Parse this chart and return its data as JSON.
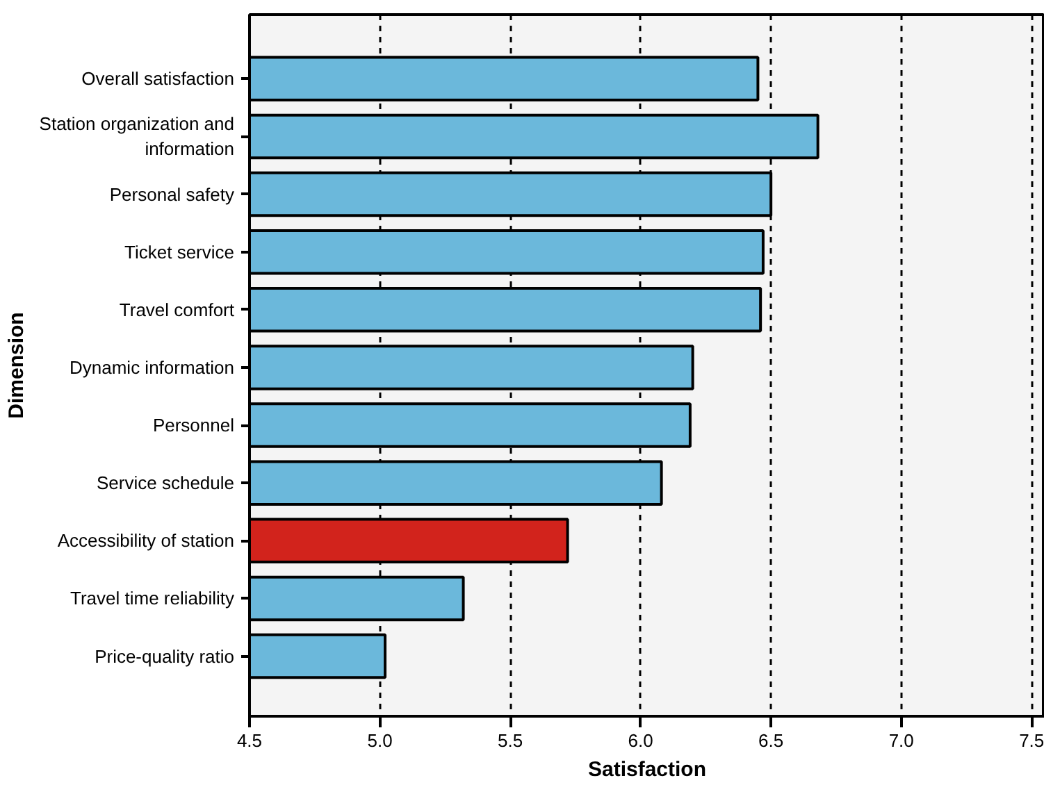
{
  "chart_data": {
    "type": "bar",
    "orientation": "horizontal",
    "xlabel": "Satisfaction",
    "ylabel": "Dimension",
    "categories": [
      "Overall satisfaction",
      "Station organization and information",
      "Personal safety",
      "Ticket service",
      "Travel comfort",
      "Dynamic information",
      "Personnel",
      "Service schedule",
      "Accessibility of station",
      "Travel time reliability",
      "Price-quality ratio"
    ],
    "values": [
      6.45,
      6.68,
      6.5,
      6.47,
      6.46,
      6.2,
      6.19,
      6.08,
      5.72,
      5.32,
      5.02
    ],
    "colors": [
      "#6bb8db",
      "#6bb8db",
      "#6bb8db",
      "#6bb8db",
      "#6bb8db",
      "#6bb8db",
      "#6bb8db",
      "#6bb8db",
      "#d2231c",
      "#6bb8db",
      "#6bb8db"
    ],
    "xlim": [
      4.5,
      7.55
    ],
    "xticks": [
      4.5,
      {
        "value": 5,
        "label": "5.0"
      },
      5.5,
      {
        "value": 6,
        "label": "6.0"
      },
      6.5,
      {
        "value": 7,
        "label": "7.0"
      },
      7.5
    ],
    "grid": "x"
  }
}
